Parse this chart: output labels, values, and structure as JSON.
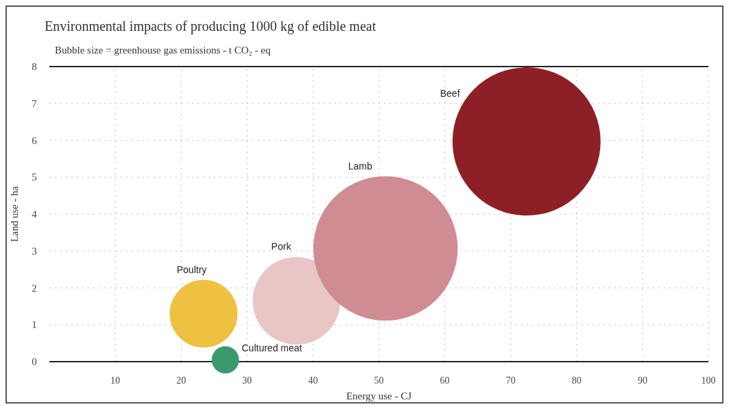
{
  "chart_data": {
    "type": "bubble",
    "title": "Environmental impacts of producing 1000 kg of edible meat",
    "subtitle": "Bubble size = greenhouse gas emissions - t CO₂ - eq",
    "xlabel": "Energy use - CJ",
    "ylabel": "Land use - ha",
    "series": [
      {
        "name": "Poultry",
        "color": "#efc142",
        "x": [
          23.4
        ],
        "values": [
          1.3
        ],
        "sizes": [
          0.21
        ]
      },
      {
        "name": "Cultured meat",
        "color": "#3a9a6e",
        "x": [
          26.7
        ],
        "values": [
          0.05
        ],
        "sizes": [
          0.034
        ]
      },
      {
        "name": "Pork",
        "color": "#e9c6c6",
        "x": [
          37.5
        ],
        "values": [
          1.65
        ],
        "sizes": [
          0.35
        ]
      },
      {
        "name": "Lamb",
        "color": "#cf8c92",
        "x": [
          51
        ],
        "values": [
          3.07
        ],
        "sizes": [
          0.95
        ]
      },
      {
        "name": "Beef",
        "color": "#8c2026",
        "x": [
          72.4
        ],
        "values": [
          5.97
        ],
        "sizes": [
          1
        ]
      }
    ],
    "xlim": [
      0,
      100
    ],
    "xticks": [
      10,
      20,
      30,
      40,
      50,
      60,
      70,
      80,
      90,
      100
    ],
    "ylim": [
      0,
      8
    ],
    "yticks": [
      0,
      1,
      2,
      3,
      4,
      5,
      6,
      7,
      8
    ],
    "grid": true
  }
}
